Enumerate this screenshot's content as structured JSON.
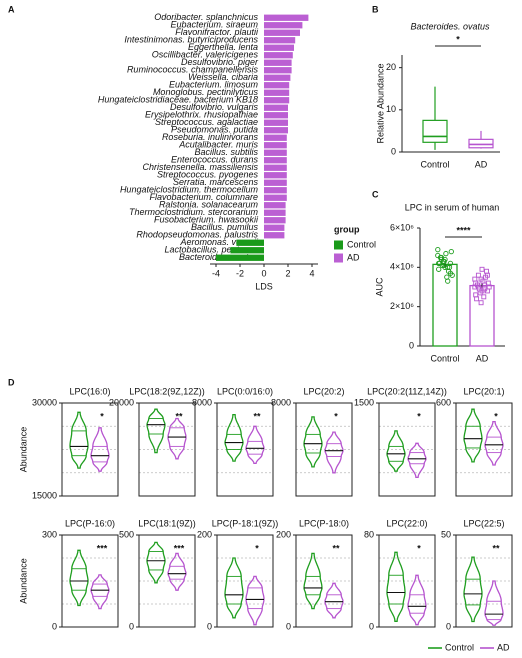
{
  "chart_data": [
    {
      "type": "hbar",
      "panel": "A",
      "x_label": "LDS",
      "xlim": [
        -4.5,
        4.5
      ],
      "xticks": [
        -4,
        -2,
        0,
        2,
        4
      ],
      "legend_title": "group",
      "categories": [
        "Odoribacter. splanchnicus",
        "Eubacterium. siraeum",
        "Flavonifractor. plautii",
        "Intestinimonas. butyriciproducens",
        "Eggerthella. lenta",
        "Oscillibacter. valericigenes",
        "Desulfovibrio. piger",
        "Ruminococcus. champanellensis",
        "Weissella. cibaria",
        "Eubacterium. limosum",
        "Monoglobus. pectinilyticus",
        "Hungateiclostridiaceae. bacterium KB18",
        "Desulfovibrio. vulgaris",
        "Erysipelothrix. rhusiopathiae",
        "Streptococcus. agalactiae",
        "Pseudomonas. putida",
        "Roseburia. inulinivorans",
        "Acutalibacter. muris",
        "Bacillus. subtilis",
        "Enterococcus. durans",
        "Christensenella. massiliensis",
        "Streptococcus. pyogenes",
        "Serratia. marcescens",
        "Hungateiclostridium. thermocellum",
        "Flavobacterium. columnare",
        "Ralstonia. solanacearum",
        "Thermoclostridium. stercorarium",
        "Fusobacterium. hwasookii",
        "Bacillus. pumilus",
        "Rhodopseudomonas. palustris",
        "Aeromonas. veronii",
        "Lactobacillus. pentosus",
        "Bacteroides. ovatus"
      ],
      "series": [
        {
          "name": "Control",
          "color": "#1a9a1a",
          "values": [
            null,
            null,
            null,
            null,
            null,
            null,
            null,
            null,
            null,
            null,
            null,
            null,
            null,
            null,
            null,
            null,
            null,
            null,
            null,
            null,
            null,
            null,
            null,
            null,
            null,
            null,
            null,
            null,
            null,
            null,
            -2.3,
            -2.8,
            -4.0
          ]
        },
        {
          "name": "AD",
          "color": "#bb5fd3",
          "values": [
            3.7,
            3.2,
            3.0,
            2.6,
            2.5,
            2.4,
            2.3,
            2.3,
            2.2,
            2.1,
            2.1,
            2.1,
            2.0,
            2.0,
            2.0,
            2.0,
            1.9,
            1.9,
            1.9,
            1.9,
            1.9,
            1.9,
            1.9,
            1.9,
            1.9,
            1.8,
            1.8,
            1.8,
            1.7,
            1.7,
            null,
            null,
            null
          ]
        }
      ]
    },
    {
      "type": "box",
      "panel": "B",
      "title": "Bacteroides. ovatus",
      "y_label": "Relative Abundance",
      "annotation": "*",
      "ylim": [
        0,
        23
      ],
      "yticks": [
        0,
        10,
        20
      ],
      "categories": [
        "Control",
        "AD"
      ],
      "colors": [
        "#1f9e1f",
        "#b654cf"
      ],
      "values": [
        [
          0.5,
          2.3,
          3.7,
          7.5,
          15.5
        ],
        [
          0.8,
          1.0,
          1.8,
          3.0,
          5.0
        ]
      ]
    },
    {
      "type": "bar_dots",
      "panel": "C",
      "title": "LPC in serum of human",
      "y_label": "AUC",
      "annotation": "****",
      "ylim": [
        0,
        6000000
      ],
      "yticks": [
        0,
        {
          "value": 2000000,
          "label": "2×10⁶"
        },
        {
          "value": 4000000,
          "label": "4×10⁶"
        },
        {
          "value": 6000000,
          "label": "6×10⁶"
        }
      ],
      "categories": [
        "Control",
        "AD"
      ],
      "colors": [
        "#1f9e1f",
        "#b654cf"
      ],
      "values": [
        4150000,
        3070000
      ],
      "errors": [
        120000,
        100000
      ],
      "points": [
        [
          4600000,
          4300000,
          4200000,
          4500000,
          4000000,
          3900000,
          4400000,
          4800000,
          4100000,
          3800000,
          4200000,
          4700000,
          3600000,
          4300000,
          4000000,
          4500000,
          3500000,
          4900000,
          4100000,
          3700000,
          4400000,
          3300000,
          4200000,
          4000000
        ],
        [
          3000000,
          3400000,
          2800000,
          3600000,
          3100000,
          2600000,
          3900000,
          3200000,
          2900000,
          3500000,
          2400000,
          3300000,
          3000000,
          2700000,
          3800000,
          3100000,
          2500000,
          3400000,
          2200000,
          3600000,
          3000000,
          2900000,
          3200000,
          2800000
        ]
      ]
    },
    {
      "type": "violin",
      "panel": "D",
      "y_label": "Abundance",
      "title": "LPC(16:0)",
      "annotation": "*",
      "ylim": [
        15000,
        30000
      ],
      "yticks": [
        15000,
        30000
      ],
      "series": [
        {
          "name": "Control",
          "color": "#1f9e1f",
          "values": [
            19500,
            21500,
            23000,
            25500,
            28500
          ]
        },
        {
          "name": "AD",
          "color": "#b654cf",
          "values": [
            19000,
            20500,
            21500,
            23000,
            26000
          ]
        }
      ]
    },
    {
      "type": "violin",
      "title": "LPC(18:2(9Z,12Z))",
      "annotation": "**",
      "ylim": [
        5000,
        20000
      ],
      "yticks": [
        20000
      ],
      "series": [
        {
          "color": "#1f9e1f",
          "values": [
            12000,
            15000,
            16500,
            17500,
            19000
          ]
        },
        {
          "color": "#b654cf",
          "values": [
            11000,
            13000,
            14500,
            16000,
            17500
          ]
        }
      ]
    },
    {
      "type": "violin",
      "title": "LPC(0:0/16:0)",
      "annotation": "**",
      "ylim": [
        0,
        8000
      ],
      "yticks": [
        8000
      ],
      "series": [
        {
          "color": "#1f9e1f",
          "values": [
            3000,
            4000,
            4600,
            5300,
            7000
          ]
        },
        {
          "color": "#b654cf",
          "values": [
            2800,
            3600,
            4100,
            4700,
            6000
          ]
        }
      ]
    },
    {
      "type": "violin",
      "title": "LPC(20:2)",
      "annotation": "*",
      "ylim": [
        0,
        8000
      ],
      "yticks": [
        8000
      ],
      "series": [
        {
          "color": "#1f9e1f",
          "values": [
            2500,
            3700,
            4500,
            5300,
            6800
          ]
        },
        {
          "color": "#b654cf",
          "values": [
            2000,
            3400,
            3900,
            4500,
            5500
          ]
        }
      ]
    },
    {
      "type": "violin",
      "title": "LPC(20:2(11Z,14Z))",
      "annotation": "*",
      "ylim": [
        0,
        1500
      ],
      "yticks": [
        1500
      ],
      "series": [
        {
          "color": "#1f9e1f",
          "values": [
            400,
            560,
            680,
            800,
            1050
          ]
        },
        {
          "color": "#b654cf",
          "values": [
            300,
            520,
            600,
            700,
            850
          ]
        }
      ]
    },
    {
      "type": "violin",
      "title": "LPC(20:1)",
      "annotation": "*",
      "ylim": [
        0,
        600
      ],
      "yticks": [
        600
      ],
      "series": [
        {
          "color": "#1f9e1f",
          "values": [
            220,
            310,
            370,
            450,
            560
          ]
        },
        {
          "color": "#b654cf",
          "values": [
            200,
            280,
            330,
            380,
            480
          ]
        }
      ]
    },
    {
      "type": "violin",
      "y_label": "Abundance",
      "title": "LPC(P-16:0)",
      "annotation": "***",
      "ylim": [
        0,
        300
      ],
      "yticks": [
        0,
        300
      ],
      "series": [
        {
          "color": "#1f9e1f",
          "values": [
            70,
            120,
            150,
            190,
            250
          ]
        },
        {
          "color": "#b654cf",
          "values": [
            60,
            100,
            120,
            140,
            170
          ]
        }
      ]
    },
    {
      "type": "violin",
      "title": "LPC(18:1(9Z))",
      "annotation": "***",
      "ylim": [
        0,
        500
      ],
      "yticks": [
        0,
        500
      ],
      "series": [
        {
          "color": "#1f9e1f",
          "values": [
            240,
            310,
            360,
            410,
            460
          ]
        },
        {
          "color": "#b654cf",
          "values": [
            200,
            260,
            290,
            330,
            400
          ]
        }
      ]
    },
    {
      "type": "violin",
      "title": "LPC(P-18:1(9Z))",
      "annotation": "*",
      "ylim": [
        0,
        200
      ],
      "yticks": [
        0,
        200
      ],
      "series": [
        {
          "color": "#1f9e1f",
          "values": [
            20,
            50,
            70,
            110,
            150
          ]
        },
        {
          "color": "#b654cf",
          "values": [
            5,
            40,
            60,
            85,
            110
          ]
        }
      ]
    },
    {
      "type": "violin",
      "title": "LPC(P-18:0)",
      "annotation": "**",
      "ylim": [
        0,
        200
      ],
      "yticks": [
        0,
        200
      ],
      "series": [
        {
          "color": "#1f9e1f",
          "values": [
            40,
            70,
            85,
            110,
            160
          ]
        },
        {
          "color": "#b654cf",
          "values": [
            20,
            40,
            55,
            70,
            95
          ]
        }
      ]
    },
    {
      "type": "violin",
      "title": "LPC(22:0)",
      "annotation": "*",
      "ylim": [
        0,
        80
      ],
      "yticks": [
        0,
        80
      ],
      "series": [
        {
          "color": "#1f9e1f",
          "values": [
            5,
            20,
            30,
            45,
            65
          ]
        },
        {
          "color": "#b654cf",
          "values": [
            2,
            12,
            18,
            28,
            45
          ]
        }
      ]
    },
    {
      "type": "violin",
      "title": "LPC(22:5)",
      "annotation": "**",
      "ylim": [
        0,
        50
      ],
      "yticks": [
        0,
        50
      ],
      "series": [
        {
          "color": "#1f9e1f",
          "values": [
            3,
            12,
            18,
            26,
            38
          ]
        },
        {
          "color": "#b654cf",
          "values": [
            1,
            4,
            7,
            14,
            25
          ]
        }
      ]
    }
  ]
}
